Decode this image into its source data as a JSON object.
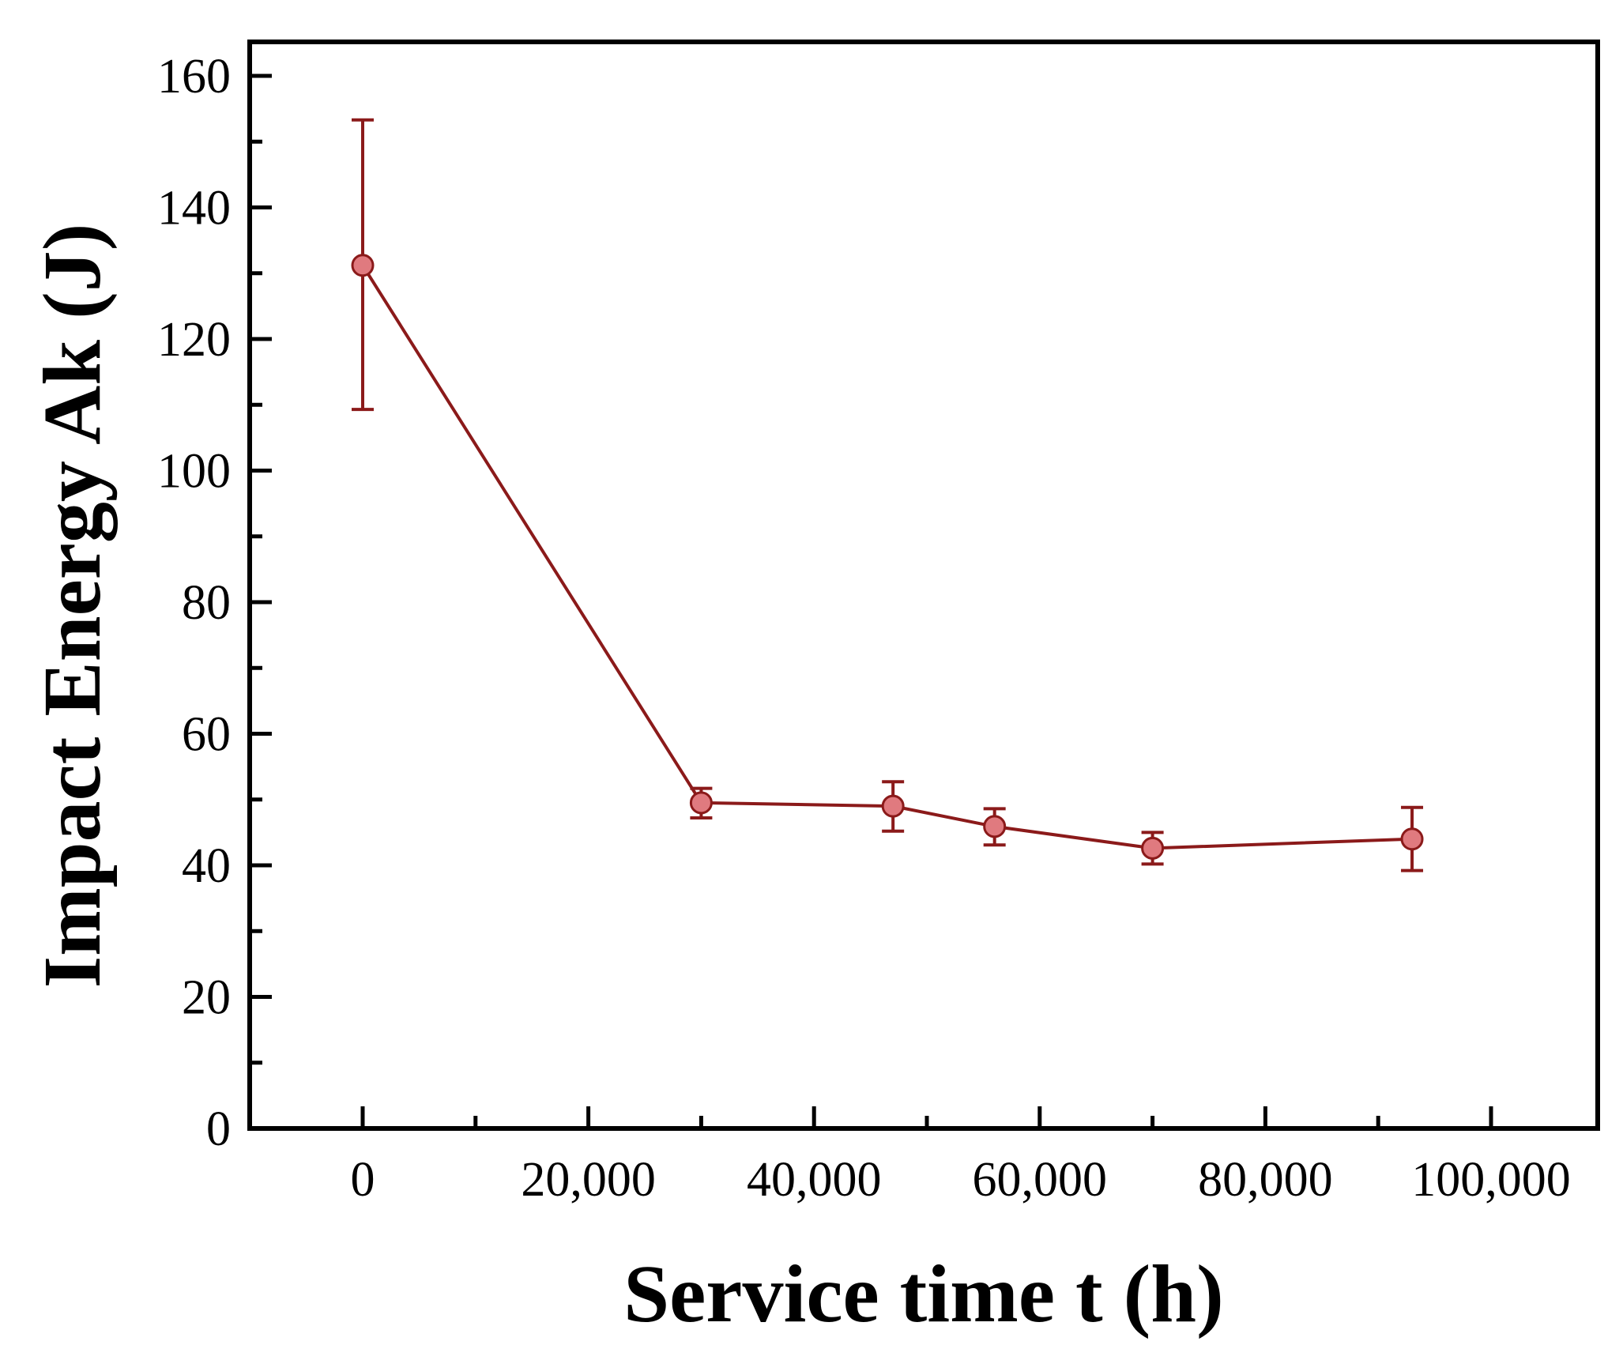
{
  "chart_data": {
    "type": "line",
    "title": "",
    "xlabel": "Service time t (h)",
    "ylabel": "Impact Energy Ak (J)",
    "xlim": [
      -10000,
      110000
    ],
    "ylim": [
      0,
      165
    ],
    "x_ticks": [
      0,
      20000,
      40000,
      60000,
      80000,
      100000
    ],
    "x_tick_labels": [
      "0",
      "20,000",
      "40,000",
      "60,000",
      "80,000",
      "100,000"
    ],
    "x_minor_ticks": [
      10000,
      30000,
      50000,
      70000,
      90000
    ],
    "y_ticks": [
      0,
      20,
      40,
      60,
      80,
      100,
      120,
      140,
      160
    ],
    "y_tick_labels": [
      "0",
      "20",
      "40",
      "60",
      "80",
      "100",
      "120",
      "140",
      "160"
    ],
    "y_minor_ticks": [
      10,
      30,
      50,
      70,
      90,
      110,
      130,
      150
    ],
    "grid": false,
    "legend": null,
    "series": [
      {
        "name": "Impact Energy",
        "color": "#8B1A1A",
        "marker_fill": "#E07A7F",
        "points": [
          {
            "x": 0,
            "y": 131.2,
            "err_low": 109.3,
            "err_high": 153.3
          },
          {
            "x": 30000,
            "y": 49.5,
            "err_low": 47.2,
            "err_high": 51.7
          },
          {
            "x": 47000,
            "y": 49.0,
            "err_low": 45.2,
            "err_high": 52.7
          },
          {
            "x": 56000,
            "y": 45.9,
            "err_low": 43.1,
            "err_high": 48.6
          },
          {
            "x": 70000,
            "y": 42.6,
            "err_low": 40.2,
            "err_high": 45.0
          },
          {
            "x": 93000,
            "y": 44.0,
            "err_low": 39.2,
            "err_high": 48.8
          }
        ]
      }
    ]
  }
}
